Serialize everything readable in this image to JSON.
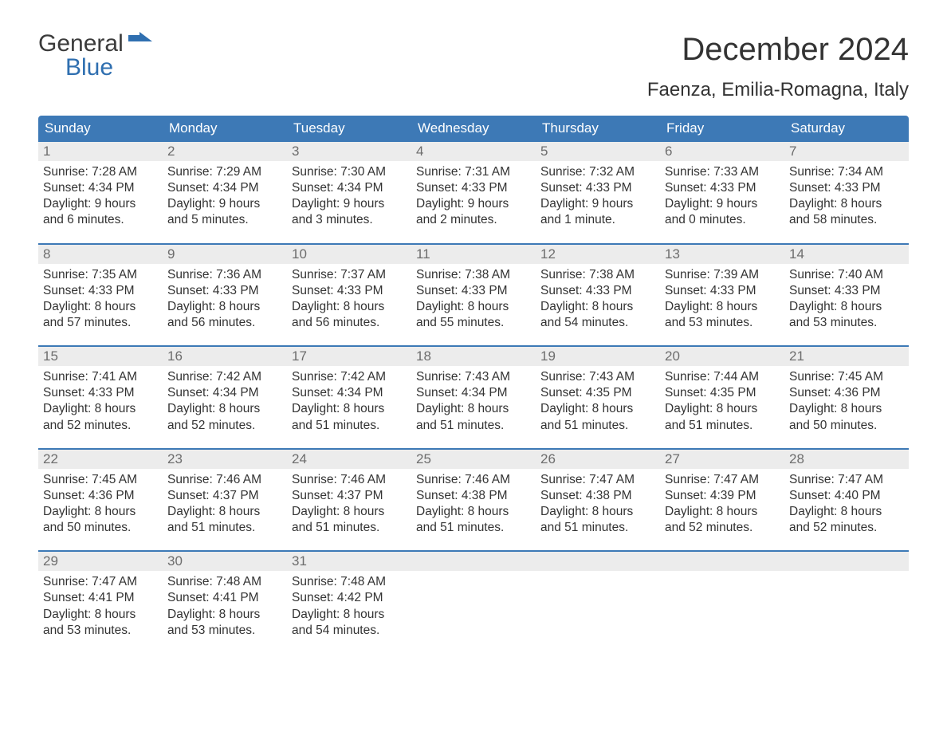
{
  "logo": {
    "line1": "General",
    "line2": "Blue",
    "flag_color": "#2f6fb0"
  },
  "title": "December 2024",
  "subtitle": "Faenza, Emilia-Romagna, Italy",
  "colors": {
    "header_bg": "#3d79b6",
    "header_text": "#ffffff",
    "daynum_bg": "#ececec",
    "daynum_text": "#6d6d6d",
    "body_text": "#333333",
    "week_divider": "#3d79b6",
    "page_bg": "#ffffff"
  },
  "days_of_week": [
    "Sunday",
    "Monday",
    "Tuesday",
    "Wednesday",
    "Thursday",
    "Friday",
    "Saturday"
  ],
  "labels": {
    "sunrise": "Sunrise:",
    "sunset": "Sunset:",
    "daylight": "Daylight:"
  },
  "weeks": [
    [
      {
        "n": "1",
        "sunrise": "7:28 AM",
        "sunset": "4:34 PM",
        "dl1": "9 hours",
        "dl2": "and 6 minutes."
      },
      {
        "n": "2",
        "sunrise": "7:29 AM",
        "sunset": "4:34 PM",
        "dl1": "9 hours",
        "dl2": "and 5 minutes."
      },
      {
        "n": "3",
        "sunrise": "7:30 AM",
        "sunset": "4:34 PM",
        "dl1": "9 hours",
        "dl2": "and 3 minutes."
      },
      {
        "n": "4",
        "sunrise": "7:31 AM",
        "sunset": "4:33 PM",
        "dl1": "9 hours",
        "dl2": "and 2 minutes."
      },
      {
        "n": "5",
        "sunrise": "7:32 AM",
        "sunset": "4:33 PM",
        "dl1": "9 hours",
        "dl2": "and 1 minute."
      },
      {
        "n": "6",
        "sunrise": "7:33 AM",
        "sunset": "4:33 PM",
        "dl1": "9 hours",
        "dl2": "and 0 minutes."
      },
      {
        "n": "7",
        "sunrise": "7:34 AM",
        "sunset": "4:33 PM",
        "dl1": "8 hours",
        "dl2": "and 58 minutes."
      }
    ],
    [
      {
        "n": "8",
        "sunrise": "7:35 AM",
        "sunset": "4:33 PM",
        "dl1": "8 hours",
        "dl2": "and 57 minutes."
      },
      {
        "n": "9",
        "sunrise": "7:36 AM",
        "sunset": "4:33 PM",
        "dl1": "8 hours",
        "dl2": "and 56 minutes."
      },
      {
        "n": "10",
        "sunrise": "7:37 AM",
        "sunset": "4:33 PM",
        "dl1": "8 hours",
        "dl2": "and 56 minutes."
      },
      {
        "n": "11",
        "sunrise": "7:38 AM",
        "sunset": "4:33 PM",
        "dl1": "8 hours",
        "dl2": "and 55 minutes."
      },
      {
        "n": "12",
        "sunrise": "7:38 AM",
        "sunset": "4:33 PM",
        "dl1": "8 hours",
        "dl2": "and 54 minutes."
      },
      {
        "n": "13",
        "sunrise": "7:39 AM",
        "sunset": "4:33 PM",
        "dl1": "8 hours",
        "dl2": "and 53 minutes."
      },
      {
        "n": "14",
        "sunrise": "7:40 AM",
        "sunset": "4:33 PM",
        "dl1": "8 hours",
        "dl2": "and 53 minutes."
      }
    ],
    [
      {
        "n": "15",
        "sunrise": "7:41 AM",
        "sunset": "4:33 PM",
        "dl1": "8 hours",
        "dl2": "and 52 minutes."
      },
      {
        "n": "16",
        "sunrise": "7:42 AM",
        "sunset": "4:34 PM",
        "dl1": "8 hours",
        "dl2": "and 52 minutes."
      },
      {
        "n": "17",
        "sunrise": "7:42 AM",
        "sunset": "4:34 PM",
        "dl1": "8 hours",
        "dl2": "and 51 minutes."
      },
      {
        "n": "18",
        "sunrise": "7:43 AM",
        "sunset": "4:34 PM",
        "dl1": "8 hours",
        "dl2": "and 51 minutes."
      },
      {
        "n": "19",
        "sunrise": "7:43 AM",
        "sunset": "4:35 PM",
        "dl1": "8 hours",
        "dl2": "and 51 minutes."
      },
      {
        "n": "20",
        "sunrise": "7:44 AM",
        "sunset": "4:35 PM",
        "dl1": "8 hours",
        "dl2": "and 51 minutes."
      },
      {
        "n": "21",
        "sunrise": "7:45 AM",
        "sunset": "4:36 PM",
        "dl1": "8 hours",
        "dl2": "and 50 minutes."
      }
    ],
    [
      {
        "n": "22",
        "sunrise": "7:45 AM",
        "sunset": "4:36 PM",
        "dl1": "8 hours",
        "dl2": "and 50 minutes."
      },
      {
        "n": "23",
        "sunrise": "7:46 AM",
        "sunset": "4:37 PM",
        "dl1": "8 hours",
        "dl2": "and 51 minutes."
      },
      {
        "n": "24",
        "sunrise": "7:46 AM",
        "sunset": "4:37 PM",
        "dl1": "8 hours",
        "dl2": "and 51 minutes."
      },
      {
        "n": "25",
        "sunrise": "7:46 AM",
        "sunset": "4:38 PM",
        "dl1": "8 hours",
        "dl2": "and 51 minutes."
      },
      {
        "n": "26",
        "sunrise": "7:47 AM",
        "sunset": "4:38 PM",
        "dl1": "8 hours",
        "dl2": "and 51 minutes."
      },
      {
        "n": "27",
        "sunrise": "7:47 AM",
        "sunset": "4:39 PM",
        "dl1": "8 hours",
        "dl2": "and 52 minutes."
      },
      {
        "n": "28",
        "sunrise": "7:47 AM",
        "sunset": "4:40 PM",
        "dl1": "8 hours",
        "dl2": "and 52 minutes."
      }
    ],
    [
      {
        "n": "29",
        "sunrise": "7:47 AM",
        "sunset": "4:41 PM",
        "dl1": "8 hours",
        "dl2": "and 53 minutes."
      },
      {
        "n": "30",
        "sunrise": "7:48 AM",
        "sunset": "4:41 PM",
        "dl1": "8 hours",
        "dl2": "and 53 minutes."
      },
      {
        "n": "31",
        "sunrise": "7:48 AM",
        "sunset": "4:42 PM",
        "dl1": "8 hours",
        "dl2": "and 54 minutes."
      },
      null,
      null,
      null,
      null
    ]
  ]
}
